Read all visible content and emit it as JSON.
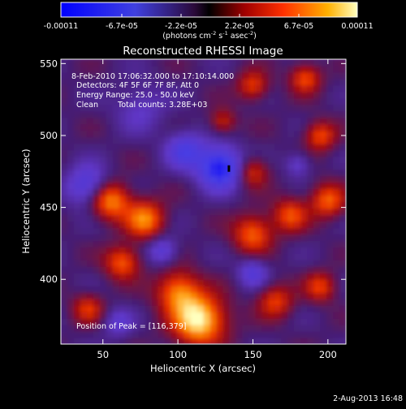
{
  "chart_data": {
    "type": "heatmap",
    "title": "Reconstructed RHESSI Image",
    "xlabel": "Heliocentric X (arcsec)",
    "ylabel": "Heliocentric Y (arcsec)",
    "xlim": [
      22,
      212
    ],
    "ylim": [
      355,
      553
    ],
    "xticks": [
      50,
      100,
      150,
      200
    ],
    "yticks": [
      400,
      450,
      500,
      550
    ],
    "colorbar": {
      "tick_labels": [
        "-0.00011",
        "-6.7e-05",
        "-2.2e-05",
        "2.2e-05",
        "6.7e-05",
        "0.00011"
      ],
      "range": [
        -0.00011,
        0.00011
      ],
      "units_label": "(photons cm",
      "units_exp1": "-2",
      "units_mid": " s",
      "units_exp2": "-1",
      "units_end": " asec",
      "units_exp3": "-2",
      "units_close": ")"
    },
    "annotations": {
      "time_range": "8-Feb-2010 17:06:32.000 to 17:10:14.000",
      "detectors": "Detectors: 4F 5F 6F 7F 8F, Att 0",
      "energy": "Energy Range: 25.0 - 50.0 keV",
      "method": "Clean",
      "counts": "Total counts: 3.28E+03",
      "peak": "Position of Peak = [116,379]"
    },
    "peak": [
      116,
      379
    ],
    "features": [
      {
        "x": 114,
        "y": 372,
        "sigma": 12,
        "amp": 1.0
      },
      {
        "x": 100,
        "y": 392,
        "sigma": 10,
        "amp": 0.65
      },
      {
        "x": 55,
        "y": 455,
        "sigma": 9,
        "amp": 0.75
      },
      {
        "x": 78,
        "y": 442,
        "sigma": 9,
        "amp": 0.7
      },
      {
        "x": 63,
        "y": 412,
        "sigma": 8,
        "amp": 0.6
      },
      {
        "x": 150,
        "y": 432,
        "sigma": 9,
        "amp": 0.62
      },
      {
        "x": 175,
        "y": 445,
        "sigma": 8,
        "amp": 0.55
      },
      {
        "x": 200,
        "y": 455,
        "sigma": 8,
        "amp": 0.6
      },
      {
        "x": 195,
        "y": 500,
        "sigma": 7,
        "amp": 0.55
      },
      {
        "x": 185,
        "y": 540,
        "sigma": 7,
        "amp": 0.55
      },
      {
        "x": 150,
        "y": 535,
        "sigma": 7,
        "amp": 0.5
      },
      {
        "x": 130,
        "y": 510,
        "sigma": 6,
        "amp": 0.4
      },
      {
        "x": 165,
        "y": 385,
        "sigma": 8,
        "amp": 0.5
      },
      {
        "x": 195,
        "y": 395,
        "sigma": 7,
        "amp": 0.5
      },
      {
        "x": 40,
        "y": 380,
        "sigma": 7,
        "amp": 0.45
      },
      {
        "x": 150,
        "y": 475,
        "sigma": 7,
        "amp": 0.45
      },
      {
        "x": 128,
        "y": 478,
        "sigma": 10,
        "amp": -0.85
      },
      {
        "x": 105,
        "y": 490,
        "sigma": 9,
        "amp": -0.5
      },
      {
        "x": 40,
        "y": 465,
        "sigma": 10,
        "amp": -0.5
      },
      {
        "x": 75,
        "y": 520,
        "sigma": 12,
        "amp": -0.25
      },
      {
        "x": 150,
        "y": 405,
        "sigma": 7,
        "amp": -0.4
      },
      {
        "x": 90,
        "y": 420,
        "sigma": 7,
        "amp": -0.4
      },
      {
        "x": 180,
        "y": 480,
        "sigma": 6,
        "amp": -0.3
      },
      {
        "x": 60,
        "y": 370,
        "sigma": 7,
        "amp": -0.3
      }
    ],
    "footer_date": "2-Aug-2013 16:48"
  }
}
